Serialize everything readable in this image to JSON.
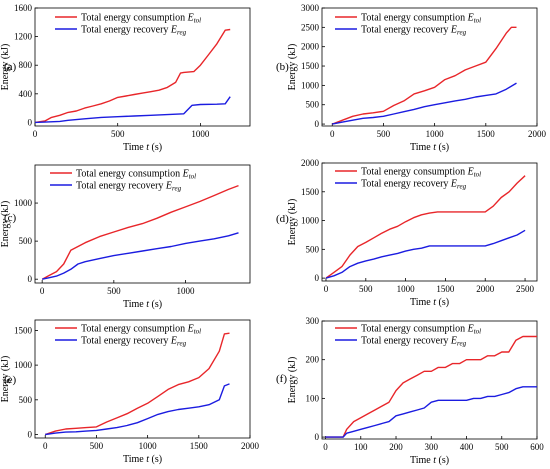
{
  "colors": {
    "consumption": "#e8262a",
    "recovery": "#1b1ce0",
    "axis": "#000000"
  },
  "legend": {
    "consumption": {
      "text": "Total energy consumption ",
      "sym": "E",
      "sub": "tol"
    },
    "recovery": {
      "text": "Total energy recovery ",
      "sym": "E",
      "sub": "reg"
    }
  },
  "ylabel": "Energy (kJ)",
  "xlabel": {
    "text": "Time ",
    "sym": "t",
    "unit": " (s)"
  },
  "chart_data": [
    {
      "type": "line",
      "panel_label": "(a)",
      "xlim": [
        0,
        1300
      ],
      "ylim": [
        -50,
        1600
      ],
      "xticks": [
        0,
        500,
        1000
      ],
      "yticks": [
        0,
        400,
        800,
        1200,
        1600
      ],
      "series": [
        {
          "name": "Total energy consumption Etol",
          "key": "consumption",
          "x": [
            0,
            60,
            100,
            150,
            200,
            250,
            300,
            350,
            400,
            450,
            500,
            550,
            600,
            650,
            700,
            750,
            800,
            850,
            880,
            900,
            960,
            1000,
            1050,
            1100,
            1150,
            1180
          ],
          "y": [
            0,
            20,
            70,
            100,
            140,
            160,
            200,
            230,
            260,
            300,
            350,
            370,
            390,
            410,
            430,
            450,
            490,
            560,
            690,
            700,
            710,
            800,
            950,
            1100,
            1290,
            1300
          ]
        },
        {
          "name": "Total energy recovery Ereg",
          "key": "recovery",
          "x": [
            0,
            60,
            150,
            200,
            300,
            400,
            500,
            600,
            700,
            800,
            900,
            950,
            1000,
            1100,
            1150,
            1180
          ],
          "y": [
            0,
            5,
            15,
            30,
            50,
            70,
            80,
            90,
            100,
            110,
            120,
            240,
            250,
            255,
            260,
            360
          ]
        }
      ]
    },
    {
      "type": "line",
      "panel_label": "(b)",
      "xlim": [
        -100,
        2000
      ],
      "ylim": [
        -50,
        3000
      ],
      "xticks": [
        0,
        500,
        1000,
        1500,
        2000
      ],
      "yticks": [
        0,
        500,
        1000,
        1500,
        2000,
        2500,
        3000
      ],
      "series": [
        {
          "name": "Total energy consumption Etol",
          "key": "consumption",
          "x": [
            0,
            100,
            200,
            300,
            400,
            500,
            600,
            700,
            800,
            900,
            1000,
            1100,
            1200,
            1300,
            1400,
            1500,
            1600,
            1700,
            1750,
            1800
          ],
          "y": [
            0,
            100,
            200,
            260,
            290,
            330,
            480,
            600,
            780,
            860,
            950,
            1150,
            1250,
            1400,
            1500,
            1600,
            1950,
            2350,
            2500,
            2500
          ]
        },
        {
          "name": "Total energy recovery Ereg",
          "key": "recovery",
          "x": [
            0,
            100,
            200,
            300,
            400,
            500,
            600,
            700,
            800,
            900,
            1000,
            1100,
            1200,
            1300,
            1400,
            1500,
            1600,
            1700,
            1800
          ],
          "y": [
            0,
            50,
            100,
            150,
            170,
            200,
            260,
            320,
            380,
            450,
            500,
            550,
            600,
            640,
            700,
            740,
            780,
            900,
            1060
          ]
        }
      ]
    },
    {
      "type": "line",
      "panel_label": "(c)",
      "xlim": [
        -50,
        1450
      ],
      "ylim": [
        -50,
        1500
      ],
      "xticks": [
        0,
        500,
        1000
      ],
      "yticks": [
        0,
        500,
        1000
      ],
      "series": [
        {
          "name": "Total energy consumption Etol",
          "key": "consumption",
          "x": [
            0,
            50,
            100,
            150,
            200,
            250,
            300,
            400,
            500,
            600,
            700,
            800,
            900,
            1000,
            1100,
            1200,
            1300,
            1370
          ],
          "y": [
            0,
            50,
            100,
            200,
            380,
            430,
            480,
            560,
            620,
            680,
            730,
            800,
            880,
            950,
            1020,
            1100,
            1180,
            1230
          ]
        },
        {
          "name": "Total energy recovery Ereg",
          "key": "recovery",
          "x": [
            0,
            50,
            100,
            150,
            200,
            250,
            300,
            400,
            500,
            600,
            700,
            800,
            900,
            1000,
            1100,
            1200,
            1300,
            1370
          ],
          "y": [
            0,
            20,
            40,
            80,
            130,
            200,
            230,
            270,
            310,
            340,
            370,
            400,
            430,
            470,
            500,
            530,
            570,
            610
          ]
        }
      ]
    },
    {
      "type": "line",
      "panel_label": "(d)",
      "xlim": [
        -50,
        2650
      ],
      "ylim": [
        -50,
        2000
      ],
      "xticks": [
        0,
        500,
        1000,
        1500,
        2000,
        2500
      ],
      "yticks": [
        0,
        500,
        1000,
        1500,
        2000
      ],
      "series": [
        {
          "name": "Total energy consumption Etol",
          "key": "consumption",
          "x": [
            0,
            100,
            200,
            300,
            400,
            500,
            600,
            700,
            800,
            900,
            1000,
            1100,
            1200,
            1300,
            1400,
            2000,
            2100,
            2200,
            2300,
            2400,
            2500
          ],
          "y": [
            0,
            100,
            200,
            400,
            550,
            620,
            700,
            780,
            850,
            900,
            980,
            1050,
            1100,
            1130,
            1150,
            1150,
            1250,
            1400,
            1500,
            1650,
            1780
          ]
        },
        {
          "name": "Total energy recovery Ereg",
          "key": "recovery",
          "x": [
            0,
            100,
            200,
            300,
            400,
            500,
            600,
            700,
            800,
            900,
            1000,
            1100,
            1200,
            1300,
            1400,
            2000,
            2100,
            2200,
            2300,
            2400,
            2500
          ],
          "y": [
            0,
            40,
            100,
            200,
            260,
            300,
            330,
            370,
            400,
            430,
            470,
            500,
            520,
            560,
            560,
            560,
            600,
            650,
            700,
            750,
            830
          ]
        }
      ]
    },
    {
      "type": "line",
      "panel_label": "(e)",
      "xlim": [
        -100,
        2000
      ],
      "ylim": [
        -50,
        1650
      ],
      "xticks": [
        0,
        500,
        1000,
        1500,
        2000
      ],
      "yticks": [
        0,
        500,
        1000,
        1500
      ],
      "series": [
        {
          "name": "Total energy consumption Etol",
          "key": "consumption",
          "x": [
            0,
            100,
            200,
            300,
            400,
            500,
            600,
            700,
            800,
            900,
            1000,
            1100,
            1200,
            1300,
            1400,
            1500,
            1600,
            1700,
            1750,
            1800
          ],
          "y": [
            0,
            50,
            80,
            90,
            100,
            110,
            180,
            240,
            300,
            380,
            450,
            550,
            650,
            720,
            760,
            820,
            950,
            1200,
            1450,
            1460
          ]
        },
        {
          "name": "Total energy recovery Ereg",
          "key": "recovery",
          "x": [
            0,
            100,
            200,
            300,
            400,
            500,
            600,
            700,
            800,
            900,
            1000,
            1100,
            1200,
            1300,
            1400,
            1500,
            1600,
            1700,
            1750,
            1800
          ],
          "y": [
            0,
            20,
            35,
            40,
            50,
            60,
            80,
            100,
            130,
            170,
            230,
            290,
            330,
            360,
            380,
            400,
            430,
            500,
            700,
            730
          ]
        }
      ]
    },
    {
      "type": "line",
      "panel_label": "(f)",
      "xlim": [
        -10,
        600
      ],
      "ylim": [
        -5,
        300
      ],
      "xticks": [
        0,
        100,
        200,
        300,
        400,
        500,
        600
      ],
      "yticks": [
        0,
        100,
        200,
        300
      ],
      "series": [
        {
          "name": "Total energy consumption Etol",
          "key": "consumption",
          "x": [
            0,
            50,
            60,
            80,
            100,
            120,
            140,
            160,
            180,
            200,
            220,
            240,
            260,
            280,
            300,
            320,
            340,
            360,
            380,
            400,
            420,
            440,
            460,
            480,
            500,
            520,
            540,
            560,
            580,
            600
          ],
          "y": [
            0,
            0,
            20,
            40,
            50,
            60,
            70,
            80,
            90,
            120,
            140,
            150,
            160,
            170,
            170,
            180,
            180,
            190,
            190,
            200,
            200,
            200,
            210,
            210,
            220,
            220,
            250,
            260,
            260,
            260
          ]
        },
        {
          "name": "Total energy recovery Ereg",
          "key": "recovery",
          "x": [
            0,
            50,
            60,
            80,
            100,
            120,
            140,
            160,
            180,
            200,
            220,
            240,
            260,
            280,
            300,
            320,
            340,
            360,
            380,
            400,
            420,
            440,
            460,
            480,
            500,
            520,
            540,
            560,
            580,
            600
          ],
          "y": [
            0,
            0,
            10,
            15,
            20,
            25,
            30,
            35,
            40,
            55,
            60,
            65,
            70,
            75,
            90,
            95,
            95,
            95,
            95,
            95,
            100,
            100,
            105,
            105,
            110,
            115,
            125,
            130,
            130,
            130
          ]
        }
      ]
    }
  ]
}
